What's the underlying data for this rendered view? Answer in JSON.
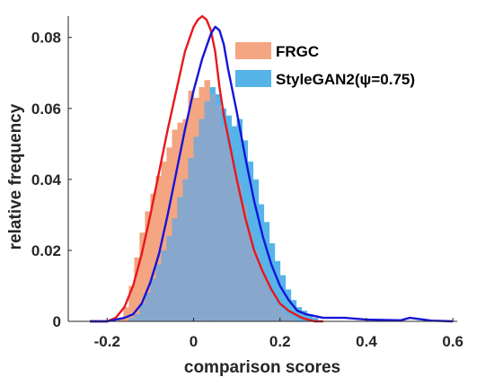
{
  "chart_data": {
    "type": "bar",
    "xlabel": "comparison scores",
    "ylabel": "relative frequency",
    "xlim": [
      -0.29,
      0.61
    ],
    "ylim": [
      0,
      0.086
    ],
    "xticks": [
      -0.2,
      0,
      0.2,
      0.4,
      0.6
    ],
    "xtick_labels": [
      "-0.2",
      "0",
      "0.2",
      "0.4",
      "0.6"
    ],
    "yticks": [
      0,
      0.02,
      0.04,
      0.06,
      0.08
    ],
    "ytick_labels": [
      "0",
      "0.02",
      "0.04",
      "0.06",
      "0.08"
    ],
    "grid": false,
    "legend_position": "top-right",
    "bin_width": 0.0125,
    "series": [
      {
        "name": "FRGC",
        "kind": "histogram",
        "color": "#F4A582",
        "bins": [
          [
            -0.175,
            0.001
          ],
          [
            -0.1625,
            0.004
          ],
          [
            -0.15,
            0.01
          ],
          [
            -0.1375,
            0.018
          ],
          [
            -0.125,
            0.025
          ],
          [
            -0.1125,
            0.031
          ],
          [
            -0.1,
            0.036
          ],
          [
            -0.0875,
            0.041
          ],
          [
            -0.075,
            0.045
          ],
          [
            -0.0625,
            0.049
          ],
          [
            -0.05,
            0.054
          ],
          [
            -0.0375,
            0.056
          ],
          [
            -0.025,
            0.057
          ],
          [
            -0.0125,
            0.065
          ],
          [
            0.0,
            0.063
          ],
          [
            0.0125,
            0.066
          ],
          [
            0.025,
            0.068
          ],
          [
            0.0375,
            0.064
          ],
          [
            0.05,
            0.061
          ],
          [
            0.0625,
            0.055
          ],
          [
            0.075,
            0.05
          ],
          [
            0.0875,
            0.043
          ],
          [
            0.1,
            0.039
          ],
          [
            0.1125,
            0.033
          ],
          [
            0.125,
            0.025
          ],
          [
            0.1375,
            0.02
          ],
          [
            0.15,
            0.016
          ],
          [
            0.1625,
            0.012
          ],
          [
            0.175,
            0.008
          ],
          [
            0.1875,
            0.005
          ],
          [
            0.2,
            0.003
          ],
          [
            0.2125,
            0.002
          ],
          [
            0.225,
            0.001
          ]
        ]
      },
      {
        "name": "StyleGAN2(ψ=0.75)",
        "kind": "histogram",
        "color": "#56B4E9",
        "bins": [
          [
            -0.15,
            0.001
          ],
          [
            -0.1375,
            0.002
          ],
          [
            -0.125,
            0.005
          ],
          [
            -0.1125,
            0.008
          ],
          [
            -0.1,
            0.012
          ],
          [
            -0.0875,
            0.016
          ],
          [
            -0.075,
            0.02
          ],
          [
            -0.0625,
            0.024
          ],
          [
            -0.05,
            0.029
          ],
          [
            -0.0375,
            0.035
          ],
          [
            -0.025,
            0.04
          ],
          [
            -0.0125,
            0.046
          ],
          [
            0.0,
            0.052
          ],
          [
            0.0125,
            0.057
          ],
          [
            0.025,
            0.062
          ],
          [
            0.0375,
            0.066
          ],
          [
            0.05,
            0.064
          ],
          [
            0.0625,
            0.06
          ],
          [
            0.075,
            0.058
          ],
          [
            0.0875,
            0.055
          ],
          [
            0.1,
            0.057
          ],
          [
            0.1125,
            0.051
          ],
          [
            0.125,
            0.045
          ],
          [
            0.1375,
            0.04
          ],
          [
            0.15,
            0.033
          ],
          [
            0.1625,
            0.028
          ],
          [
            0.175,
            0.022
          ],
          [
            0.1875,
            0.017
          ],
          [
            0.2,
            0.013
          ],
          [
            0.2125,
            0.009
          ],
          [
            0.225,
            0.006
          ],
          [
            0.2375,
            0.004
          ],
          [
            0.25,
            0.003
          ],
          [
            0.2625,
            0.002
          ],
          [
            0.275,
            0.001
          ]
        ]
      }
    ],
    "curves": [
      {
        "name": "FRGC",
        "color": "#E8171D",
        "points": [
          [
            -0.24,
            0.0
          ],
          [
            -0.2,
            0.0
          ],
          [
            -0.18,
            0.001
          ],
          [
            -0.16,
            0.004
          ],
          [
            -0.14,
            0.01
          ],
          [
            -0.12,
            0.019
          ],
          [
            -0.1,
            0.03
          ],
          [
            -0.08,
            0.042
          ],
          [
            -0.06,
            0.054
          ],
          [
            -0.04,
            0.065
          ],
          [
            -0.02,
            0.076
          ],
          [
            0.0,
            0.083
          ],
          [
            0.01,
            0.085
          ],
          [
            0.02,
            0.086
          ],
          [
            0.03,
            0.085
          ],
          [
            0.04,
            0.082
          ],
          [
            0.05,
            0.076
          ],
          [
            0.06,
            0.066
          ],
          [
            0.07,
            0.058
          ],
          [
            0.08,
            0.052
          ],
          [
            0.1,
            0.04
          ],
          [
            0.12,
            0.029
          ],
          [
            0.14,
            0.02
          ],
          [
            0.16,
            0.014
          ],
          [
            0.18,
            0.009
          ],
          [
            0.2,
            0.005
          ],
          [
            0.22,
            0.003
          ],
          [
            0.25,
            0.001
          ],
          [
            0.28,
            0.0
          ],
          [
            0.3,
            0.0
          ]
        ]
      },
      {
        "name": "StyleGAN2(ψ=0.75)",
        "color": "#1515D8",
        "points": [
          [
            -0.24,
            0.0
          ],
          [
            -0.2,
            0.0
          ],
          [
            -0.16,
            0.001
          ],
          [
            -0.14,
            0.002
          ],
          [
            -0.12,
            0.005
          ],
          [
            -0.1,
            0.011
          ],
          [
            -0.08,
            0.019
          ],
          [
            -0.06,
            0.03
          ],
          [
            -0.04,
            0.042
          ],
          [
            -0.02,
            0.054
          ],
          [
            0.0,
            0.065
          ],
          [
            0.02,
            0.074
          ],
          [
            0.04,
            0.081
          ],
          [
            0.05,
            0.083
          ],
          [
            0.06,
            0.082
          ],
          [
            0.07,
            0.078
          ],
          [
            0.08,
            0.071
          ],
          [
            0.1,
            0.059
          ],
          [
            0.12,
            0.046
          ],
          [
            0.14,
            0.034
          ],
          [
            0.16,
            0.024
          ],
          [
            0.18,
            0.016
          ],
          [
            0.2,
            0.01
          ],
          [
            0.22,
            0.006
          ],
          [
            0.24,
            0.003
          ],
          [
            0.26,
            0.002
          ],
          [
            0.3,
            0.001
          ],
          [
            0.35,
            0.001
          ],
          [
            0.4,
            0.0005
          ],
          [
            0.48,
            0.0003
          ],
          [
            0.5,
            0.001
          ],
          [
            0.55,
            0.0002
          ],
          [
            0.6,
            0.0
          ]
        ]
      }
    ]
  },
  "overlap_color": "#87A8CC"
}
